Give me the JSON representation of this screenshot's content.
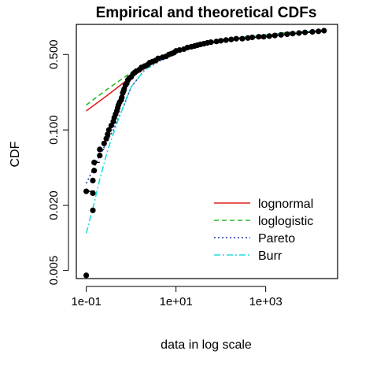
{
  "chart_data": {
    "type": "line",
    "title": "Empirical and theoretical CDFs",
    "xlabel": "data in log scale",
    "ylabel": "CDF",
    "x_scale": "log10",
    "y_scale": "log10",
    "xlim": [
      0.06,
      40000
    ],
    "ylim": [
      0.0042,
      0.95
    ],
    "x_ticks": [
      {
        "value": 0.1,
        "label": "1e-01"
      },
      {
        "value": 10,
        "label": "1e+01"
      },
      {
        "value": 1000,
        "label": "1e+03"
      }
    ],
    "y_ticks": [
      {
        "value": 0.005,
        "label": "0.005"
      },
      {
        "value": 0.02,
        "label": "0.020"
      },
      {
        "value": 0.1,
        "label": "0.100"
      },
      {
        "value": 0.5,
        "label": "0.500"
      }
    ],
    "grid": false,
    "legend_position": "bottom-right",
    "empirical": {
      "color": "#000000",
      "points": [
        [
          0.1,
          0.0045
        ],
        [
          0.1,
          0.027
        ],
        [
          0.14,
          0.018
        ],
        [
          0.14,
          0.026
        ],
        [
          0.14,
          0.034
        ],
        [
          0.15,
          0.042
        ],
        [
          0.15,
          0.05
        ],
        [
          0.2,
          0.058
        ],
        [
          0.2,
          0.066
        ],
        [
          0.25,
          0.075
        ],
        [
          0.28,
          0.083
        ],
        [
          0.3,
          0.091
        ],
        [
          0.32,
          0.1
        ],
        [
          0.36,
          0.11
        ],
        [
          0.4,
          0.12
        ],
        [
          0.42,
          0.13
        ],
        [
          0.45,
          0.14
        ],
        [
          0.48,
          0.15
        ],
        [
          0.5,
          0.16
        ],
        [
          0.52,
          0.17
        ],
        [
          0.55,
          0.18
        ],
        [
          0.6,
          0.19
        ],
        [
          0.62,
          0.2
        ],
        [
          0.65,
          0.22
        ],
        [
          0.68,
          0.23
        ],
        [
          0.7,
          0.24
        ],
        [
          0.75,
          0.26
        ],
        [
          0.8,
          0.27
        ],
        [
          0.85,
          0.29
        ],
        [
          0.9,
          0.3
        ],
        [
          1.0,
          0.31
        ],
        [
          1.1,
          0.33
        ],
        [
          1.2,
          0.34
        ],
        [
          1.3,
          0.35
        ],
        [
          1.5,
          0.36
        ],
        [
          1.7,
          0.38
        ],
        [
          2.0,
          0.39
        ],
        [
          2.3,
          0.4
        ],
        [
          2.6,
          0.42
        ],
        [
          3.0,
          0.43
        ],
        [
          3.5,
          0.44
        ],
        [
          4.0,
          0.46
        ],
        [
          5.0,
          0.47
        ],
        [
          6.0,
          0.48
        ],
        [
          7.0,
          0.5
        ],
        [
          8.0,
          0.51
        ],
        [
          9.0,
          0.52
        ],
        [
          10,
          0.54
        ],
        [
          12,
          0.55
        ],
        [
          15,
          0.56
        ],
        [
          18,
          0.58
        ],
        [
          22,
          0.59
        ],
        [
          26,
          0.6
        ],
        [
          30,
          0.61
        ],
        [
          35,
          0.62
        ],
        [
          42,
          0.63
        ],
        [
          50,
          0.64
        ],
        [
          60,
          0.65
        ],
        [
          80,
          0.66
        ],
        [
          100,
          0.67
        ],
        [
          130,
          0.68
        ],
        [
          170,
          0.69
        ],
        [
          220,
          0.7
        ],
        [
          300,
          0.7
        ],
        [
          400,
          0.71
        ],
        [
          500,
          0.72
        ],
        [
          700,
          0.73
        ],
        [
          900,
          0.73
        ],
        [
          1200,
          0.74
        ],
        [
          1600,
          0.75
        ],
        [
          2200,
          0.76
        ],
        [
          3000,
          0.77
        ],
        [
          4000,
          0.78
        ],
        [
          5500,
          0.79
        ],
        [
          7500,
          0.8
        ],
        [
          11000,
          0.81
        ],
        [
          15000,
          0.82
        ],
        [
          20000,
          0.83
        ]
      ]
    },
    "series": [
      {
        "name": "lognormal",
        "color": "#DF2020",
        "dash": "",
        "points": [
          [
            0.1,
            0.15
          ],
          [
            0.3,
            0.21
          ],
          [
            1,
            0.31
          ],
          [
            3,
            0.41
          ],
          [
            10,
            0.52
          ],
          [
            30,
            0.6
          ],
          [
            100,
            0.66
          ],
          [
            300,
            0.71
          ],
          [
            1000,
            0.75
          ],
          [
            3000,
            0.79
          ],
          [
            10000,
            0.81
          ],
          [
            20000,
            0.82
          ]
        ]
      },
      {
        "name": "loglogistic",
        "color": "#22BB22",
        "dash": "6,4",
        "points": [
          [
            0.1,
            0.17
          ],
          [
            0.3,
            0.24
          ],
          [
            1,
            0.34
          ],
          [
            3,
            0.44
          ],
          [
            10,
            0.54
          ],
          [
            30,
            0.62
          ],
          [
            100,
            0.68
          ],
          [
            300,
            0.72
          ],
          [
            1000,
            0.76
          ],
          [
            3000,
            0.8
          ],
          [
            10000,
            0.82
          ],
          [
            20000,
            0.84
          ]
        ]
      },
      {
        "name": "Pareto",
        "color": "#2233AA",
        "dash": "2,3",
        "points": [
          [
            0.1,
            0.032
          ],
          [
            0.2,
            0.058
          ],
          [
            0.4,
            0.1
          ],
          [
            0.7,
            0.17
          ],
          [
            1,
            0.25
          ],
          [
            2,
            0.36
          ],
          [
            5,
            0.45
          ],
          [
            10,
            0.53
          ],
          [
            30,
            0.61
          ],
          [
            100,
            0.67
          ],
          [
            300,
            0.72
          ],
          [
            1000,
            0.76
          ],
          [
            3000,
            0.79
          ],
          [
            10000,
            0.82
          ],
          [
            20000,
            0.83
          ]
        ]
      },
      {
        "name": "Burr",
        "color": "#22DDDD",
        "dash": "8,3,2,3",
        "points": [
          [
            0.1,
            0.011
          ],
          [
            0.15,
            0.021
          ],
          [
            0.2,
            0.035
          ],
          [
            0.3,
            0.065
          ],
          [
            0.5,
            0.12
          ],
          [
            0.8,
            0.2
          ],
          [
            1,
            0.25
          ],
          [
            2,
            0.36
          ],
          [
            5,
            0.46
          ],
          [
            10,
            0.53
          ],
          [
            30,
            0.61
          ],
          [
            100,
            0.67
          ],
          [
            300,
            0.72
          ],
          [
            1000,
            0.76
          ],
          [
            3000,
            0.79
          ],
          [
            10000,
            0.82
          ],
          [
            20000,
            0.84
          ]
        ]
      }
    ]
  }
}
